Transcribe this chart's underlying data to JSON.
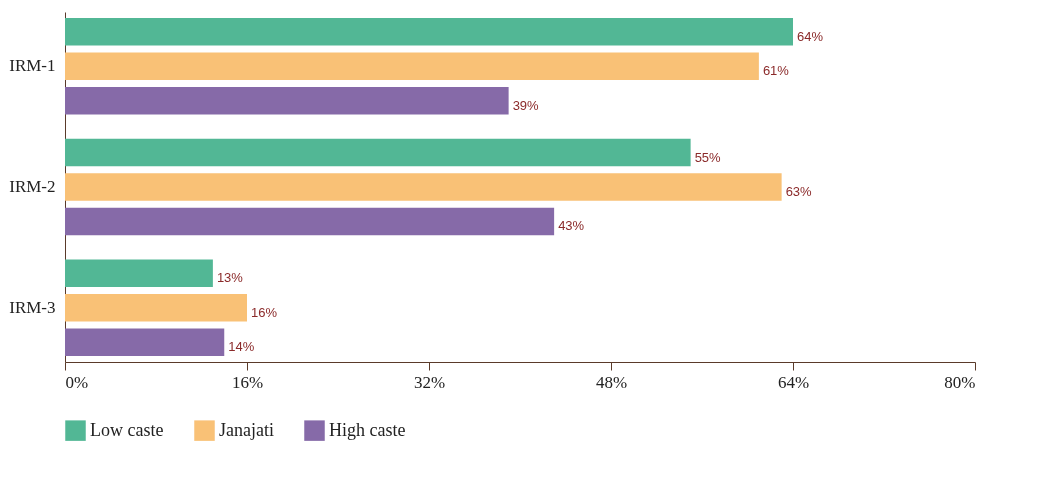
{
  "chart_data": {
    "type": "bar",
    "orientation": "horizontal",
    "categories": [
      "IRM-1",
      "IRM-2",
      "IRM-3"
    ],
    "series": [
      {
        "name": "Low caste",
        "color": "#52b795",
        "values": [
          64,
          55,
          13
        ],
        "value_labels": [
          "64%",
          "55%",
          "13%"
        ]
      },
      {
        "name": "Janajati",
        "color": "#f9c176",
        "values": [
          61,
          63,
          16
        ],
        "value_labels": [
          "61%",
          "63%",
          "16%"
        ]
      },
      {
        "name": "High caste",
        "color": "#866aa8",
        "values": [
          39,
          43,
          14
        ],
        "value_labels": [
          "39%",
          "43%",
          "14%"
        ]
      }
    ],
    "xlim": [
      0,
      80
    ],
    "xticks": [
      {
        "value": 0,
        "label": "0%"
      },
      {
        "value": 16,
        "label": "16%"
      },
      {
        "value": 32,
        "label": "32%"
      },
      {
        "value": 48,
        "label": "48%"
      },
      {
        "value": 64,
        "label": "64%"
      },
      {
        "value": 80,
        "label": "80%"
      }
    ],
    "grid": false,
    "legend": "bottom left"
  }
}
